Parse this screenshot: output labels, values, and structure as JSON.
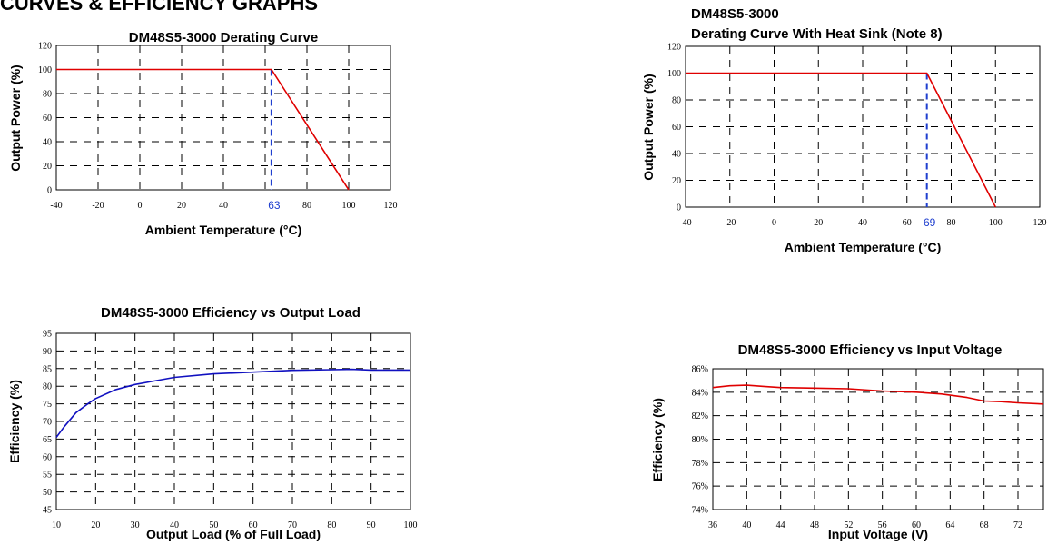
{
  "page": {
    "heading": "CURVES & EFFICIENCY GRAPHS"
  },
  "chart_data": [
    {
      "type": "line",
      "title": "DM48S5-3000   Derating Curve",
      "xlabel": "Ambient Temperature (°C)",
      "ylabel": "Output Power (%)",
      "xlim": [
        -40,
        120
      ],
      "ylim": [
        0,
        120
      ],
      "xticks": [
        -40,
        -20,
        0,
        20,
        40,
        60,
        80,
        100,
        120
      ],
      "yticks": [
        0,
        20,
        40,
        60,
        80,
        100,
        120
      ],
      "grid": true,
      "series": [
        {
          "color": "#e00000",
          "x": [
            -40,
            63,
            100
          ],
          "y": [
            100,
            100,
            0
          ]
        }
      ],
      "marker": {
        "x": 63,
        "label": "63",
        "color": "#1f3fcf"
      }
    },
    {
      "type": "line",
      "title": "DM48S5-3000",
      "subtitle": "Derating Curve With Heat Sink (Note 8)",
      "xlabel": "Ambient Temperature (°C)",
      "ylabel": "Output Power (%)",
      "xlim": [
        -40,
        120
      ],
      "ylim": [
        0,
        120
      ],
      "xticks": [
        -40,
        -20,
        0,
        20,
        40,
        60,
        80,
        100,
        120
      ],
      "yticks": [
        0,
        20,
        40,
        60,
        80,
        100,
        120
      ],
      "grid": true,
      "series": [
        {
          "color": "#e00000",
          "x": [
            -40,
            69,
            100
          ],
          "y": [
            100,
            100,
            0
          ]
        }
      ],
      "marker": {
        "x": 69,
        "label": "69",
        "color": "#1f3fcf"
      }
    },
    {
      "type": "line",
      "title": "DM48S5-3000     Efficiency vs Output Load",
      "xlabel": "Output Load (% of Full Load)",
      "ylabel": "Efficiency (%)",
      "xlim": [
        10,
        100
      ],
      "ylim": [
        45,
        95
      ],
      "xticks": [
        10,
        20,
        30,
        40,
        50,
        60,
        70,
        80,
        90,
        100
      ],
      "yticks": [
        45,
        50,
        55,
        60,
        65,
        70,
        75,
        80,
        85,
        90,
        95
      ],
      "grid": true,
      "series": [
        {
          "color": "#1010c0",
          "x": [
            10,
            12,
            15,
            18,
            20,
            25,
            30,
            35,
            40,
            50,
            60,
            70,
            80,
            85,
            90,
            100
          ],
          "y": [
            65.5,
            68.5,
            72.5,
            75,
            76.5,
            79,
            80.5,
            81.5,
            82.5,
            83.5,
            84,
            84.5,
            84.7,
            84.8,
            84.6,
            84.6
          ]
        }
      ]
    },
    {
      "type": "line",
      "title": "DM48S5-3000  Efficiency vs Input Voltage",
      "xlabel": "Input Voltage (V)",
      "ylabel": "Efficiency (%)",
      "xlim": [
        36,
        75
      ],
      "ylim": [
        74,
        86
      ],
      "xticks": [
        36,
        40,
        44,
        48,
        52,
        56,
        60,
        64,
        68,
        72
      ],
      "yticks": [
        74,
        76,
        78,
        80,
        82,
        84,
        86
      ],
      "ytick_format": "%",
      "grid": true,
      "series": [
        {
          "color": "#e00000",
          "x": [
            36,
            38,
            40,
            42,
            44,
            48,
            52,
            56,
            60,
            63,
            66,
            68,
            70,
            72,
            75
          ],
          "y": [
            84.4,
            84.55,
            84.6,
            84.5,
            84.4,
            84.35,
            84.3,
            84.1,
            84.0,
            83.85,
            83.55,
            83.25,
            83.2,
            83.1,
            83.0
          ]
        }
      ]
    }
  ]
}
